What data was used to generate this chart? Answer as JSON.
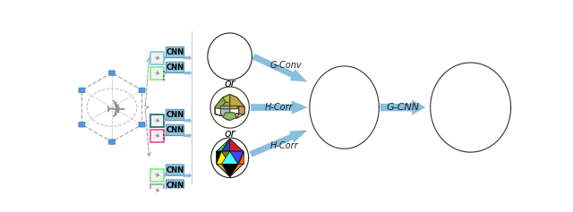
{
  "figsize": [
    6.4,
    2.37
  ],
  "dpi": 100,
  "arrow_color": "#7ab8d9",
  "cnn_box_color": "#8fc4de",
  "border_colors_top": [
    "#87ceeb",
    "#90ee90"
  ],
  "border_colors_mid": [
    "#2f8080",
    "#ee66aa"
  ],
  "border_colors_bot": [
    "#90ee90",
    "#aaaaaa"
  ],
  "g_conv_label": "G-Conv",
  "h_corr_label": "H-Corr",
  "g_cnn_label": "G-CNN",
  "ico_colors": [
    "#2244bb",
    "#ddaa00",
    "#cc3333",
    "#228833",
    "#cc8800",
    "#aa22cc",
    "#22aacc",
    "#ff6633",
    "#4488ff",
    "#88cc44",
    "#cc44aa",
    "#ffcc00",
    "#44ccff",
    "#ff4444",
    "#44aa44",
    "#8833ff",
    "#ffaa44",
    "#44bb88",
    "#ff8844",
    "#ee2222",
    "#22eeaa",
    "#000044"
  ],
  "dod_colors": [
    "#c8c870",
    "#aacc55",
    "#88aa44",
    "#bba830",
    "#cc9900",
    "#c0a840",
    "#88aacc",
    "#6699bb",
    "#aabbcc",
    "#ddcc88",
    "#cc9966",
    "#88bb66"
  ],
  "small_ico_colors": [
    "#ff44aa",
    "#44cc44",
    "#2244bb",
    "#ffcc00",
    "#cc2222",
    "#ff8800",
    "#000000",
    "#887700",
    "#cc4400",
    "#4444ff",
    "#00aa44",
    "#ffff00",
    "#0044cc",
    "#ff6600",
    "#44ffff"
  ],
  "green_sphere_colors": [
    "#4a8a5a",
    "#5a9a6a",
    "#6aaa7a",
    "#3a7a4a",
    "#3a6a4a",
    "#5a8a5a",
    "#6a8860",
    "#7aaa6a",
    "#4a8840",
    "#5a9a55",
    "#3a7a55",
    "#8a9a60",
    "#6aaa55",
    "#5a8850",
    "#4a9a5a",
    "#7a9a65",
    "#558860",
    "#6a8a50",
    "#4a7a50",
    "#6a9860"
  ],
  "final_sphere_colors": [
    "#5566aa",
    "#aa88cc",
    "#667799",
    "#998877",
    "#4488aa",
    "#664488",
    "#886699",
    "#99aacc",
    "#7799bb",
    "#5577aa",
    "#aa9988",
    "#7788cc",
    "#88aa99",
    "#665577",
    "#aaaadd",
    "#8877aa",
    "#99aadd",
    "#7799aa",
    "#668877",
    "#8866aa",
    "#446688",
    "#9977bb",
    "#557799"
  ]
}
